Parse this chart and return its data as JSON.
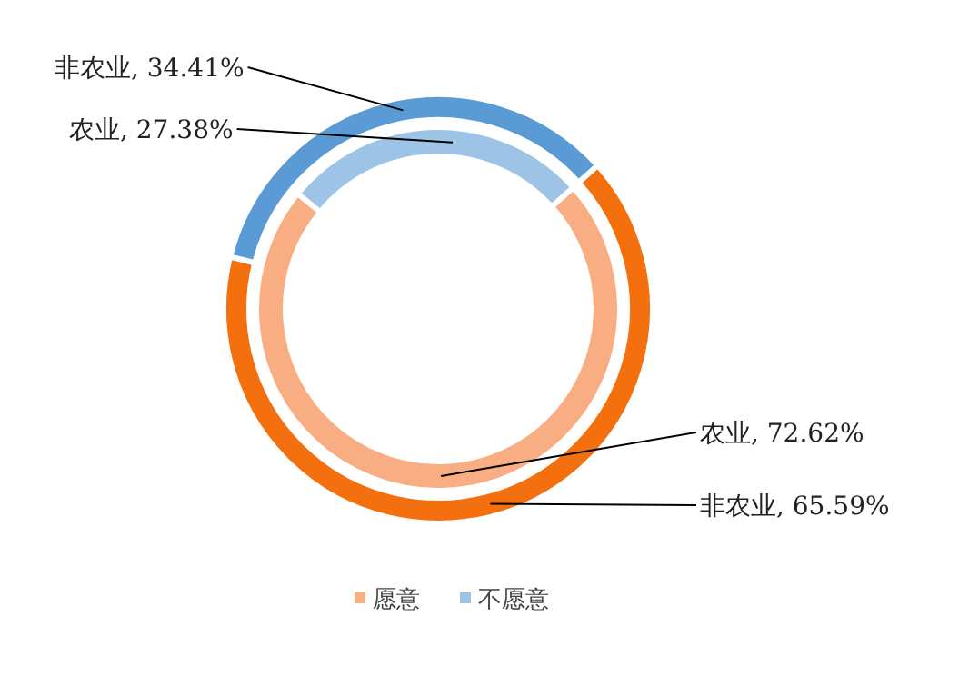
{
  "chart_data": {
    "type": "donut",
    "categories": [
      "愿意",
      "不愿意"
    ],
    "series": [
      {
        "values": [
          65.59,
          34.41
        ],
        "colors": [
          "#f4700f",
          "#5b9bd5"
        ],
        "value_labels": [
          "非农业, 65.59%",
          "非农业, 34.41%"
        ]
      },
      {
        "values": [
          72.62,
          27.38
        ],
        "colors": [
          "#f8ad82",
          "#9dc3e6"
        ],
        "value_labels": [
          "农业, 72.62%",
          "农业, 27.38%"
        ]
      }
    ],
    "legend": "bottom"
  }
}
